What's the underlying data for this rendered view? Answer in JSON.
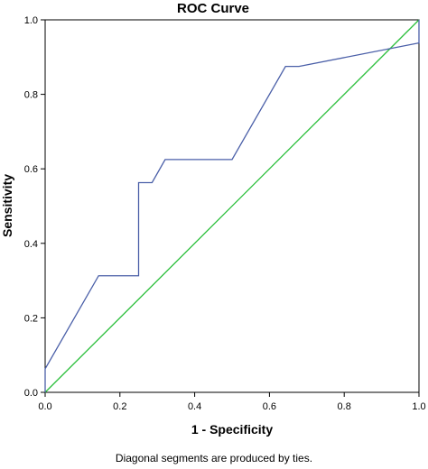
{
  "chart_data": {
    "type": "line",
    "title": "ROC Curve",
    "xlabel": "1 - Specificity",
    "ylabel": "Sensitivity",
    "footnote": "Diagonal segments are produced by ties.",
    "xlim": [
      0.0,
      1.0
    ],
    "ylim": [
      0.0,
      1.0
    ],
    "xticks": [
      "0.0",
      "0.2",
      "0.4",
      "0.6",
      "0.8",
      "1.0"
    ],
    "yticks": [
      "0.0",
      "0.2",
      "0.4",
      "0.6",
      "0.8",
      "1.0"
    ],
    "grid": false,
    "series": [
      {
        "color": "#4a5fa8",
        "x": [
          0.0,
          0.0,
          0.143,
          0.25,
          0.25,
          0.286,
          0.321,
          0.5,
          0.643,
          0.679,
          1.0,
          1.0
        ],
        "y": [
          0.0,
          0.063,
          0.313,
          0.313,
          0.563,
          0.563,
          0.625,
          0.625,
          0.875,
          0.875,
          0.938,
          1.0
        ]
      },
      {
        "color": "#2bbf3b",
        "x": [
          0.0,
          1.0
        ],
        "y": [
          0.0,
          1.0
        ]
      }
    ]
  }
}
